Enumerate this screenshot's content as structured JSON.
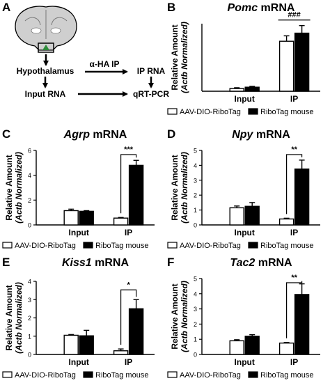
{
  "panel_a": {
    "letter": "A",
    "nodes": {
      "hypothalamus": "Hypothalamus",
      "input_rna": "Input RNA",
      "ip_rna": "IP RNA",
      "qrtpcr": "qRT-PCR",
      "ha_ip": "α-HA IP"
    }
  },
  "legend": {
    "open": "AAV-DIO-RiboTag",
    "filled": "RiboTag mouse"
  },
  "ylabel": {
    "line1": "Relative Amount",
    "line2": "(Actb Normalized)"
  },
  "colors": {
    "open": "#ffffff",
    "filled": "#000000",
    "stroke": "#000000"
  },
  "chart_data": [
    {
      "letter": "B",
      "type": "bar",
      "gene": "Pomc",
      "title_suffix": " mRNA",
      "categories": [
        "Input",
        "IP"
      ],
      "series": [
        {
          "name": "AAV-DIO-RiboTag",
          "values": [
            1.0,
            18.5
          ],
          "errors": [
            0.3,
            2.0
          ]
        },
        {
          "name": "RiboTag mouse",
          "values": [
            1.5,
            21.5
          ],
          "errors": [
            0.3,
            2.8
          ]
        }
      ],
      "ylim": [
        0,
        25
      ],
      "yticks": [],
      "significance": "###",
      "sig_type": "line"
    },
    {
      "letter": "C",
      "type": "bar",
      "gene": "Agrp",
      "title_suffix": " mRNA",
      "categories": [
        "Input",
        "IP"
      ],
      "series": [
        {
          "name": "AAV-DIO-RiboTag",
          "values": [
            1.15,
            0.55
          ],
          "errors": [
            0.12,
            0.05
          ]
        },
        {
          "name": "RiboTag mouse",
          "values": [
            1.1,
            4.8
          ],
          "errors": [
            0.05,
            0.4
          ]
        }
      ],
      "ylim": [
        0,
        6
      ],
      "yticks": [
        "0",
        "2",
        "4",
        "6"
      ],
      "significance": "***",
      "sig_type": "bracket"
    },
    {
      "letter": "D",
      "type": "bar",
      "gene": "Npy",
      "title_suffix": " mRNA",
      "categories": [
        "Input",
        "IP"
      ],
      "series": [
        {
          "name": "AAV-DIO-RiboTag",
          "values": [
            1.15,
            0.4
          ],
          "errors": [
            0.12,
            0.05
          ]
        },
        {
          "name": "RiboTag mouse",
          "values": [
            1.25,
            3.75
          ],
          "errors": [
            0.25,
            0.6
          ]
        }
      ],
      "ylim": [
        0,
        5
      ],
      "yticks": [
        "0",
        "1",
        "2",
        "3",
        "4",
        "5"
      ],
      "significance": "**",
      "sig_type": "bracket"
    },
    {
      "letter": "E",
      "type": "bar",
      "gene": "Kiss1",
      "title_suffix": " mRNA",
      "categories": [
        "Input",
        "IP"
      ],
      "series": [
        {
          "name": "AAV-DIO-RiboTag",
          "values": [
            1.05,
            0.2
          ],
          "errors": [
            0.04,
            0.1
          ]
        },
        {
          "name": "RiboTag mouse",
          "values": [
            1.02,
            2.5
          ],
          "errors": [
            0.3,
            0.5
          ]
        }
      ],
      "ylim": [
        0,
        4
      ],
      "yticks": [
        "0",
        "1",
        "2",
        "3",
        "4"
      ],
      "significance": "*",
      "sig_type": "bracket"
    },
    {
      "letter": "F",
      "type": "bar",
      "gene": "Tac2",
      "title_suffix": " mRNA",
      "categories": [
        "Input",
        "IP"
      ],
      "series": [
        {
          "name": "AAV-DIO-RiboTag",
          "values": [
            0.9,
            0.75
          ],
          "errors": [
            0.07,
            0.04
          ]
        },
        {
          "name": "RiboTag mouse",
          "values": [
            1.2,
            3.95
          ],
          "errors": [
            0.1,
            0.7
          ]
        }
      ],
      "ylim": [
        0,
        5
      ],
      "yticks": [
        "0",
        "1",
        "2",
        "3",
        "4",
        "5"
      ],
      "significance": "**",
      "sig_type": "bracket"
    }
  ]
}
